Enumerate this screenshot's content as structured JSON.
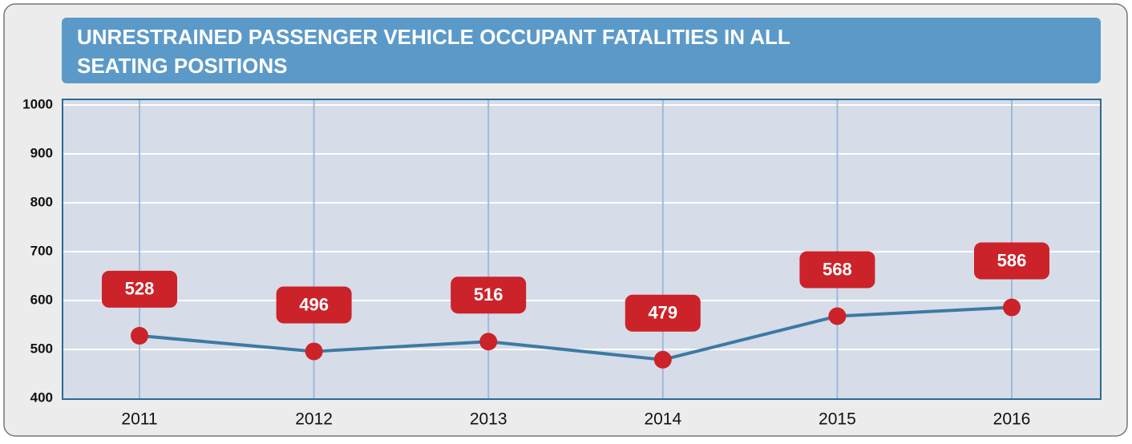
{
  "chart_data": {
    "type": "line",
    "title": [
      "UNRESTRAINED PASSENGER VEHICLE OCCUPANT FATALITIES IN ALL",
      "SEATING POSITIONS"
    ],
    "categories": [
      "2011",
      "2012",
      "2013",
      "2014",
      "2015",
      "2016"
    ],
    "series": [
      {
        "color": "#3d7aa3",
        "marker_color": "#cc2229",
        "values": [
          528,
          496,
          516,
          479,
          568,
          586
        ]
      }
    ],
    "ylim": [
      400,
      1000
    ],
    "yticks": [
      400,
      500,
      600,
      700,
      800,
      900,
      1000
    ],
    "grid": true
  }
}
